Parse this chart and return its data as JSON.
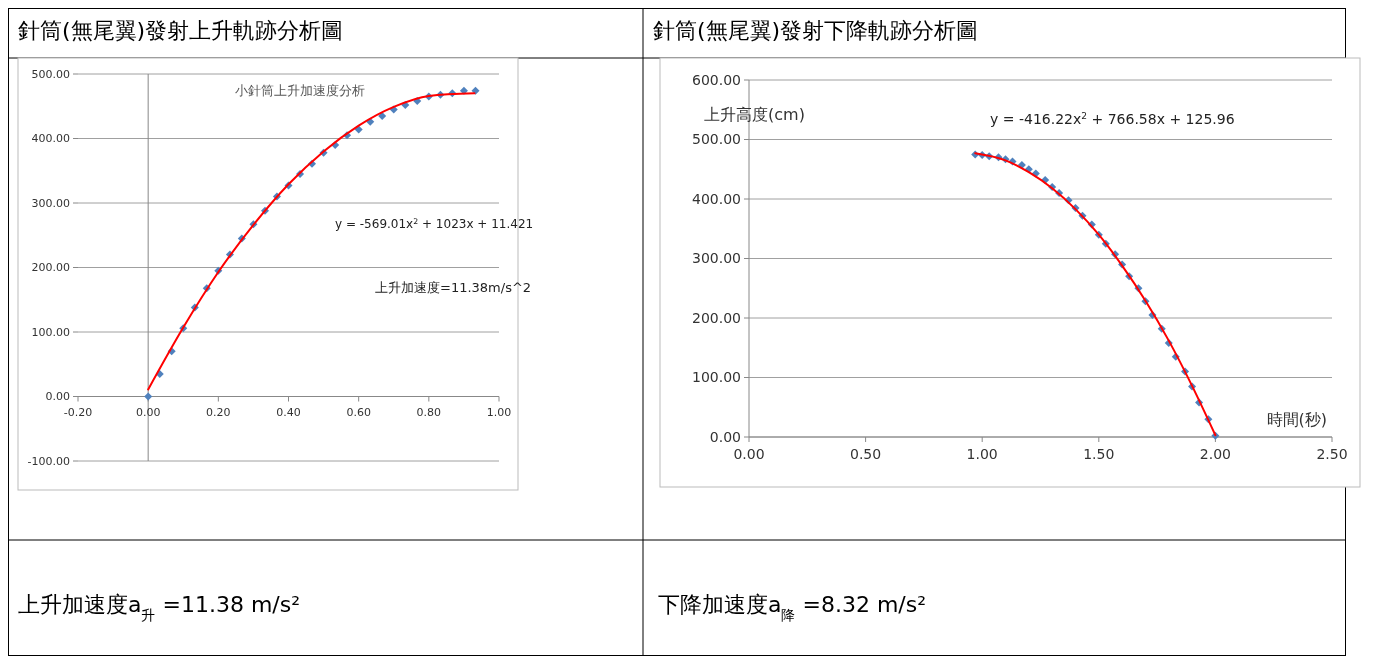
{
  "chart_data": [
    {
      "type": "scatter",
      "title": "針筒(無尾翼)發射上升軌跡分析圖",
      "subtitle": "小針筒上升加速度分析",
      "xlim": [
        -0.2,
        1.0
      ],
      "xticks": [
        {
          "value": -0.2,
          "label": "-0.20"
        },
        {
          "value": 0,
          "label": "0.00"
        },
        {
          "value": 0.2,
          "label": "0.20"
        },
        {
          "value": 0.4,
          "label": "0.40"
        },
        {
          "value": 0.6,
          "label": "0.60"
        },
        {
          "value": 0.8,
          "label": "0.80"
        },
        {
          "value": 1.0,
          "label": "1.00"
        }
      ],
      "ylim": [
        -100,
        500
      ],
      "yticks": [
        {
          "value": -100,
          "label": "-100.00"
        },
        {
          "value": 0,
          "label": "0.00"
        },
        {
          "value": 100,
          "label": "100.00"
        },
        {
          "value": 200,
          "label": "200.00"
        },
        {
          "value": 300,
          "label": "300.00"
        },
        {
          "value": 400,
          "label": "400.00"
        },
        {
          "value": 500,
          "label": "500.00"
        }
      ],
      "grid": "y",
      "marker": "diamond",
      "series": [
        {
          "color": "#4f81bd",
          "x": [
            0,
            0.033,
            0.067,
            0.1,
            0.133,
            0.167,
            0.2,
            0.233,
            0.267,
            0.3,
            0.333,
            0.367,
            0.4,
            0.433,
            0.467,
            0.5,
            0.533,
            0.567,
            0.6,
            0.633,
            0.667,
            0.7,
            0.733,
            0.767,
            0.8,
            0.833,
            0.867,
            0.9,
            0.933
          ],
          "values": [
            0,
            35,
            70,
            106,
            138,
            168,
            195,
            220,
            245,
            267,
            288,
            310,
            327,
            345,
            361,
            378,
            390,
            405,
            414,
            426,
            435,
            445,
            452,
            458,
            465,
            468,
            470,
            474,
            474
          ]
        },
        {
          "type": "line",
          "color": "#ff0000",
          "marker": "none",
          "line_style": "solid",
          "x": [
            0,
            0.1,
            0.2,
            0.3,
            0.4,
            0.5,
            0.6,
            0.7,
            0.8,
            0.93
          ],
          "values": [
            11,
            107,
            193,
            266,
            329,
            380,
            420,
            449,
            466,
            470
          ]
        }
      ],
      "annotations": [
        "y = -569.01x$^{2}$ + 1023x + 11.421",
        "上升加速度=11.38m/s^2",
        "上升加速度a$_{升}$ =11.38 m/s²"
      ]
    },
    {
      "type": "scatter",
      "title": "針筒(無尾翼)發射下降軌跡分析圖",
      "xlabel": "時間(秒)",
      "ylabel": "上升高度(cm)",
      "xlim": [
        0,
        2.5
      ],
      "xticks": [
        {
          "value": 0,
          "label": "0.00"
        },
        {
          "value": 0.5,
          "label": "0.50"
        },
        {
          "value": 1.0,
          "label": "1.00"
        },
        {
          "value": 1.5,
          "label": "1.50"
        },
        {
          "value": 2.0,
          "label": "2.00"
        },
        {
          "value": 2.5,
          "label": "2.50"
        }
      ],
      "ylim": [
        0,
        600
      ],
      "yticks": [
        {
          "value": 0,
          "label": "0.00"
        },
        {
          "value": 100,
          "label": "100.00"
        },
        {
          "value": 200,
          "label": "200.00"
        },
        {
          "value": 300,
          "label": "300.00"
        },
        {
          "value": 400,
          "label": "400.00"
        },
        {
          "value": 500,
          "label": "500.00"
        },
        {
          "value": 600,
          "label": "600.00"
        }
      ],
      "grid": "y",
      "marker": "diamond",
      "series": [
        {
          "color": "#4f81bd",
          "x": [
            0.97,
            1.0,
            1.03,
            1.07,
            1.1,
            1.13,
            1.17,
            1.2,
            1.23,
            1.27,
            1.3,
            1.33,
            1.37,
            1.4,
            1.43,
            1.47,
            1.5,
            1.53,
            1.57,
            1.6,
            1.63,
            1.67,
            1.7,
            1.73,
            1.77,
            1.8,
            1.83,
            1.87,
            1.9,
            1.93,
            1.97,
            2.0
          ],
          "values": [
            475,
            474,
            472,
            470,
            467,
            463,
            457,
            450,
            443,
            432,
            420,
            410,
            398,
            385,
            372,
            357,
            340,
            325,
            307,
            290,
            270,
            250,
            228,
            205,
            182,
            158,
            135,
            110,
            85,
            58,
            30,
            2
          ]
        },
        {
          "type": "line",
          "color": "#ff0000",
          "marker": "none",
          "line_style": "solid",
          "x": [
            0.97,
            1.1,
            1.2,
            1.3,
            1.4,
            1.5,
            1.6,
            1.7,
            1.8,
            1.9,
            2.0
          ],
          "values": [
            477,
            465,
            445,
            418,
            383,
            340,
            288,
            229,
            162,
            86,
            3
          ]
        }
      ],
      "annotations": [
        "y = -416.22x$^{2}$ + 766.58x + 125.96",
        "下降加速度a$_{降}$ =8.32 m/s²"
      ]
    }
  ]
}
